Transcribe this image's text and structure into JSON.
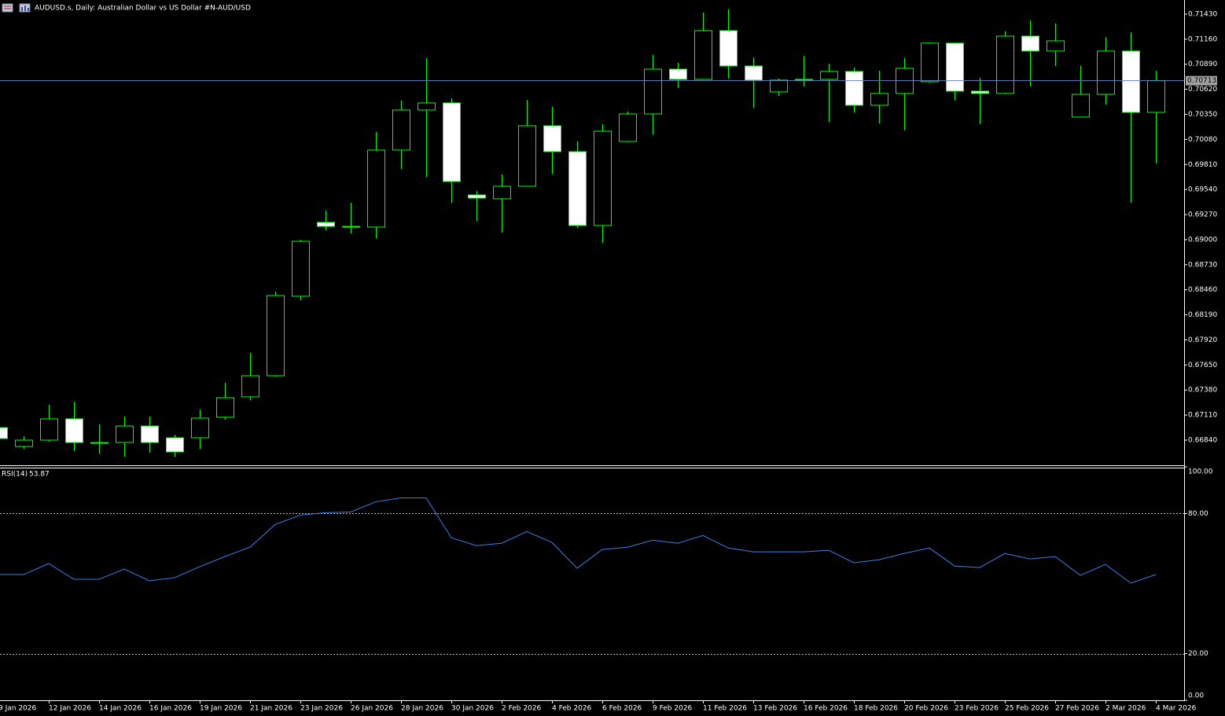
{
  "chart_data": [
    {
      "type": "candlestick",
      "title": "AUDUSD.s, Daily:  Australian Dollar vs US Dollar #N-AUD/USD",
      "categories": [
        "9 Jan 2026",
        null,
        "12 Jan 2026",
        null,
        "14 Jan 2026",
        null,
        "16 Jan 2026",
        null,
        "19 Jan 2026",
        null,
        "21 Jan 2026",
        null,
        "23 Jan 2026",
        null,
        "26 Jan 2026",
        null,
        "28 Jan 2026",
        null,
        "30 Jan 2026",
        null,
        "2 Feb 2026",
        null,
        "4 Feb 2026",
        null,
        "6 Feb 2026",
        null,
        "9 Feb 2026",
        null,
        "11 Feb 2026",
        null,
        "13 Feb 2026",
        null,
        "16 Feb 2026",
        null,
        "18 Feb 2026",
        null,
        "20 Feb 2026",
        null,
        "23 Feb 2026",
        null,
        "25 Feb 2026",
        null,
        "27 Feb 2026",
        null,
        "2 Mar 2026",
        null,
        "4 Mar 2026"
      ],
      "open": [
        0.66975,
        0.66772,
        0.6684,
        0.67069,
        0.66814,
        0.66814,
        0.66992,
        0.66865,
        0.66865,
        0.67086,
        0.67306,
        0.67534,
        0.6839,
        0.69186,
        0.69135,
        0.69135,
        0.69965,
        0.70397,
        0.70473,
        0.69482,
        0.6944,
        0.69575,
        0.70227,
        0.69948,
        0.69152,
        0.70058,
        0.70354,
        0.70837,
        0.70727,
        0.71252,
        0.70871,
        0.70592,
        0.70719,
        0.70727,
        0.70812,
        0.70448,
        0.70575,
        0.70702,
        0.71117,
        0.706,
        0.70575,
        0.71193,
        0.71032,
        0.70321,
        0.70566,
        0.71032,
        0.70371
      ],
      "high": [
        0.66992,
        0.66882,
        0.67221,
        0.67255,
        0.67009,
        0.67094,
        0.67094,
        0.66899,
        0.6717,
        0.67458,
        0.6778,
        0.6844,
        0.68999,
        0.69313,
        0.69397,
        0.7016,
        0.70498,
        0.70956,
        0.70524,
        0.69525,
        0.69702,
        0.70507,
        0.70431,
        0.70058,
        0.70244,
        0.7038,
        0.7099,
        0.70905,
        0.71447,
        0.71481,
        0.70964,
        0.70736,
        0.70981,
        0.70896,
        0.70854,
        0.7082,
        0.70956,
        0.71125,
        0.71117,
        0.70744,
        0.71244,
        0.71362,
        0.71328,
        0.70871,
        0.71184,
        0.71235,
        0.7082
      ],
      "low": [
        0.6684,
        0.66747,
        0.66823,
        0.66721,
        0.66696,
        0.66662,
        0.66704,
        0.66662,
        0.66747,
        0.6706,
        0.67272,
        0.67526,
        0.68347,
        0.69101,
        0.69067,
        0.69016,
        0.69762,
        0.69677,
        0.69397,
        0.69203,
        0.69076,
        0.69575,
        0.69711,
        0.69126,
        0.68966,
        0.7005,
        0.70134,
        0.70634,
        0.70727,
        0.70736,
        0.70422,
        0.70549,
        0.70651,
        0.7027,
        0.70371,
        0.70253,
        0.70177,
        0.70693,
        0.70498,
        0.70244,
        0.70566,
        0.70651,
        0.70871,
        0.70321,
        0.70456,
        0.69397,
        0.69821
      ],
      "close": [
        0.66857,
        0.6684,
        0.67069,
        0.66814,
        0.66806,
        0.66992,
        0.66814,
        0.66713,
        0.67077,
        0.67297,
        0.67534,
        0.68398,
        0.68982,
        0.69143,
        0.69143,
        0.69965,
        0.70397,
        0.70473,
        0.69626,
        0.69448,
        0.69575,
        0.70227,
        0.69948,
        0.69152,
        0.70168,
        0.70354,
        0.70837,
        0.70727,
        0.71252,
        0.70871,
        0.70719,
        0.70719,
        0.70727,
        0.70812,
        0.70448,
        0.70575,
        0.70846,
        0.71117,
        0.706,
        0.70575,
        0.71193,
        0.71032,
        0.71142,
        0.70566,
        0.71032,
        0.70371,
        0.70713
      ],
      "current_price": 0.70713,
      "color": "#00ff00",
      "up_fill": "#000000",
      "down_fill": "#ffffff",
      "price_line_color": "#6d80c0",
      "ylim": [
        0.66569,
        0.71582
      ],
      "yticks": [
        {
          "value": 0.7143,
          "label": "0.71430"
        },
        {
          "value": 0.7116,
          "label": "0.71160"
        },
        {
          "value": 0.7089,
          "label": "0.70890"
        },
        {
          "value": 0.7062,
          "label": "0.70620"
        },
        {
          "value": 0.7035,
          "label": "0.70350"
        },
        {
          "value": 0.7008,
          "label": "0.70080"
        },
        {
          "value": 0.6981,
          "label": "0.69810"
        },
        {
          "value": 0.6954,
          "label": "0.69540"
        },
        {
          "value": 0.6927,
          "label": "0.69270"
        },
        {
          "value": 0.69,
          "label": "0.69000"
        },
        {
          "value": 0.6873,
          "label": "0.68730"
        },
        {
          "value": 0.6846,
          "label": "0.68460"
        },
        {
          "value": 0.6819,
          "label": "0.68190"
        },
        {
          "value": 0.6792,
          "label": "0.67920"
        },
        {
          "value": 0.6765,
          "label": "0.67650"
        },
        {
          "value": 0.6738,
          "label": "0.67380"
        },
        {
          "value": 0.6711,
          "label": "0.67110"
        },
        {
          "value": 0.6684,
          "label": "0.66840"
        }
      ]
    },
    {
      "type": "line",
      "title": "RSI(14)",
      "values": [
        53.86,
        53.86,
        58.55,
        51.85,
        51.85,
        56.2,
        51.18,
        52.52,
        57.21,
        61.57,
        65.59,
        75.31,
        79.34,
        80.34,
        80.68,
        85.04,
        86.71,
        86.71,
        69.61,
        66.26,
        67.27,
        72.3,
        67.6,
        56.54,
        64.59,
        65.59,
        68.61,
        67.27,
        70.62,
        65.26,
        63.59,
        63.59,
        63.59,
        64.25,
        58.89,
        60.23,
        62.91,
        65.26,
        57.55,
        56.88,
        62.91,
        60.56,
        61.57,
        53.52,
        58.22,
        50.17,
        53.87
      ],
      "color": "#3a7fe8",
      "ylim": [
        0,
        100
      ],
      "yticks": [
        {
          "value": 100,
          "label": "100.00"
        },
        {
          "value": 80,
          "label": "80.00"
        },
        {
          "value": 20,
          "label": "20.00"
        },
        {
          "value": 0,
          "label": "0.00"
        }
      ],
      "levels": [
        80,
        20
      ]
    }
  ]
}
